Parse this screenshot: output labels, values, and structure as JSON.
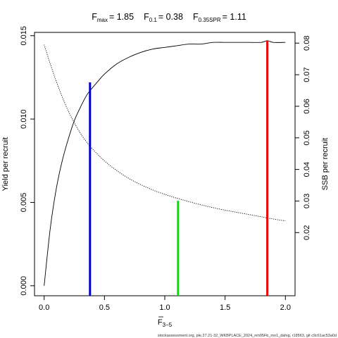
{
  "chart_data": {
    "type": "line",
    "title": {
      "fmax_label": "F",
      "fmax_sub": "max",
      "fmax_value": "= 1.85",
      "f01_label": "F",
      "f01_sub": "0.1",
      "f01_value": "= 0.38",
      "fspr_label": "F",
      "fspr_sub": "0.35SPR",
      "fspr_value": "= 1.11"
    },
    "xlabel": "F",
    "xlabel_sub": "3−5",
    "ylabel_left": "Yield per recruit",
    "ylabel_right": "SSB per recruit",
    "xlim": [
      0,
      2.0
    ],
    "ylim_left": [
      0,
      0.015
    ],
    "ylim_right": [
      0.0,
      0.08
    ],
    "x_ticks": [
      0.0,
      0.5,
      1.0,
      1.5,
      2.0
    ],
    "x_tick_labels": [
      "0.0",
      "0.5",
      "1.0",
      "1.5",
      "2.0"
    ],
    "y_left_ticks": [
      0.0,
      0.005,
      0.01,
      0.015
    ],
    "y_left_tick_labels": [
      "0.000",
      "0.005",
      "0.010",
      "0.015"
    ],
    "y_right_ticks": [
      0.02,
      0.03,
      0.04,
      0.05,
      0.06,
      0.07,
      0.08
    ],
    "y_right_tick_labels": [
      "0.02",
      "0.03",
      "0.04",
      "0.05",
      "0.06",
      "0.07",
      "0.08"
    ],
    "grid": false,
    "series": [
      {
        "style": "solid",
        "axis": "left",
        "color": "#000000",
        "x": [
          0,
          0.05,
          0.1,
          0.15,
          0.2,
          0.25,
          0.3,
          0.35,
          0.38,
          0.45,
          0.5,
          0.6,
          0.7,
          0.8,
          0.9,
          1.0,
          1.1,
          1.2,
          1.3,
          1.4,
          1.5,
          1.6,
          1.7,
          1.8,
          1.85,
          1.9,
          2.0
        ],
        "y": [
          0.0,
          0.0034,
          0.0058,
          0.0075,
          0.0088,
          0.0099,
          0.0107,
          0.0114,
          0.0117,
          0.0123,
          0.0127,
          0.0133,
          0.0137,
          0.014,
          0.0142,
          0.0143,
          0.0144,
          0.0145,
          0.0145,
          0.0146,
          0.0146,
          0.0146,
          0.0146,
          0.0146,
          0.0147,
          0.0146,
          0.0146
        ]
      },
      {
        "style": "dotted",
        "axis": "right",
        "color": "#000000",
        "x": [
          0,
          0.05,
          0.1,
          0.15,
          0.2,
          0.25,
          0.3,
          0.35,
          0.4,
          0.5,
          0.6,
          0.7,
          0.8,
          0.9,
          1.0,
          1.1,
          1.2,
          1.3,
          1.4,
          1.5,
          1.6,
          1.7,
          1.8,
          1.9,
          2.0
        ],
        "y": [
          0.0795,
          0.0735,
          0.068,
          0.063,
          0.0585,
          0.0548,
          0.0515,
          0.0488,
          0.0465,
          0.0427,
          0.0397,
          0.0372,
          0.0352,
          0.0335,
          0.0321,
          0.0309,
          0.0298,
          0.0288,
          0.0279,
          0.0271,
          0.0264,
          0.0257,
          0.025,
          0.0243,
          0.0237
        ]
      }
    ],
    "reference_lines": [
      {
        "x": 0.38,
        "y_top": 0.0122,
        "axis": "left",
        "color": "#0000cc"
      },
      {
        "x": 1.11,
        "y_top": 0.0051,
        "axis": "left",
        "color": "#00e000"
      },
      {
        "x": 1.85,
        "y_top": 0.0147,
        "axis": "left",
        "color": "#ee0000"
      }
    ]
  },
  "footer": "stockassessment.org, ple.27.21-32_WKBPLACE_2024_nm05Fb_mo1_dahig, r18563, git c9c61ac53a0d"
}
